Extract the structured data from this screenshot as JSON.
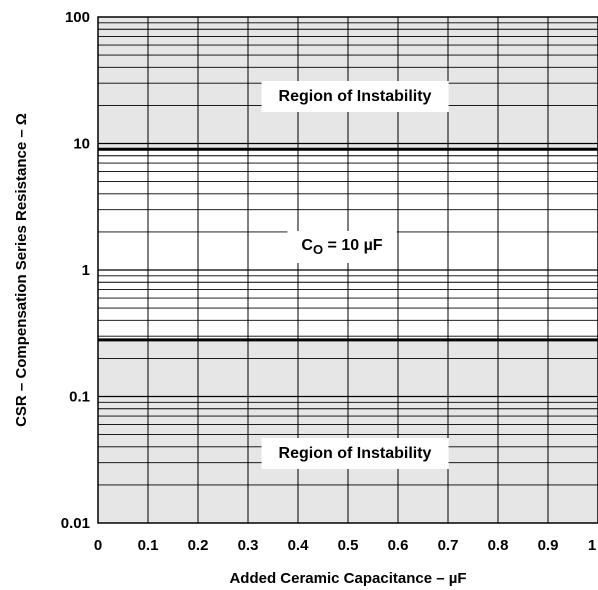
{
  "chart_data": {
    "type": "area",
    "xlabel": "Added Ceramic Capacitance – µF",
    "ylabel": "CSR – Compensation Series Resistance – Ω",
    "x_ticks": [
      "0",
      "0.1",
      "0.2",
      "0.3",
      "0.4",
      "0.5",
      "0.6",
      "0.7",
      "0.8",
      "0.9",
      "1"
    ],
    "y_ticks": [
      "0.01",
      "0.1",
      "1",
      "10",
      "100"
    ],
    "xlim": [
      0,
      1
    ],
    "ylim": [
      0.01,
      100
    ],
    "y_scale": "log",
    "grid": true,
    "regions": [
      {
        "label": "Region of Instability",
        "y_range": [
          9.0,
          100
        ],
        "fill": "#e6e6e6"
      },
      {
        "label": "Region of Instability",
        "y_range": [
          0.01,
          0.28
        ],
        "fill": "#e6e6e6"
      }
    ],
    "boundaries": [
      {
        "x": [
          0,
          1
        ],
        "y": [
          9.0,
          9.0
        ]
      },
      {
        "x": [
          0,
          1
        ],
        "y": [
          0.28,
          0.28
        ]
      }
    ],
    "annotations": [
      {
        "text_main": "C",
        "text_sub": "O",
        "text_rest": " = 10 µF",
        "x": 0.5,
        "y": 1.9
      }
    ]
  }
}
